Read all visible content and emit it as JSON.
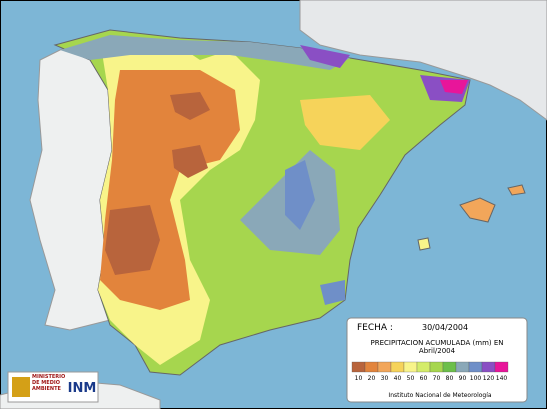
{
  "map": {
    "panel": {
      "date_label": "FECHA :",
      "date": "30/04/2004",
      "title_line1": "PRECIPITACION ACUMULADA (mm) EN",
      "title_line2": "Abril/2004",
      "legend": [
        {
          "label": "10",
          "color": "#b8643c"
        },
        {
          "label": "20",
          "color": "#e2843c"
        },
        {
          "label": "30",
          "color": "#f2a65a"
        },
        {
          "label": "40",
          "color": "#f6d35a"
        },
        {
          "label": "50",
          "color": "#f8f48a"
        },
        {
          "label": "60",
          "color": "#d4ec6a"
        },
        {
          "label": "70",
          "color": "#a6d64e"
        },
        {
          "label": "80",
          "color": "#6cbf4a"
        },
        {
          "label": "90",
          "color": "#8aa8b8"
        },
        {
          "label": "100",
          "color": "#6f8fc8"
        },
        {
          "label": "120",
          "color": "#8a4fc4"
        },
        {
          "label": "140",
          "color": "#e8159a"
        }
      ],
      "credit": "Instituto Nacional de Meteorología"
    },
    "logos": {
      "ministry": "MINISTERIO DE MEDIO AMBIENTE",
      "agency": "INM"
    }
  }
}
